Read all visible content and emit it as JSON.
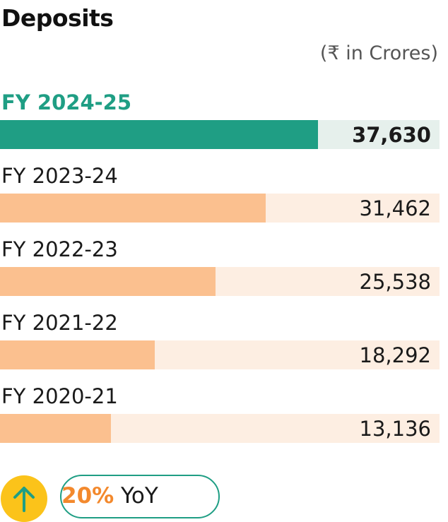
{
  "chart_data": {
    "type": "bar",
    "orientation": "horizontal",
    "title": "Deposits",
    "unit_note": "(₹ in Crores)",
    "categories": [
      "FY 2024-25",
      "FY 2023-24",
      "FY 2022-23",
      "FY 2021-22",
      "FY 2020-21"
    ],
    "values": [
      37630,
      31462,
      25538,
      18292,
      13136
    ],
    "value_labels": [
      "37,630",
      "31,462",
      "25,538",
      "18,292",
      "13,136"
    ],
    "highlighted_index": 0,
    "xlim": [
      0,
      52000
    ],
    "grid": false,
    "legend": "none",
    "colors": {
      "highlight_bar": "#1f9e84",
      "highlight_track": "#e6f0ec",
      "bar": "#fbc08f",
      "track": "#fdeee2"
    }
  },
  "growth": {
    "percent": "20%",
    "suffix": " YoY",
    "icon": "arrow-up-icon",
    "icon_bg": "#fbc31a",
    "accent": "#1f9e84",
    "percent_color": "#f3892d"
  }
}
